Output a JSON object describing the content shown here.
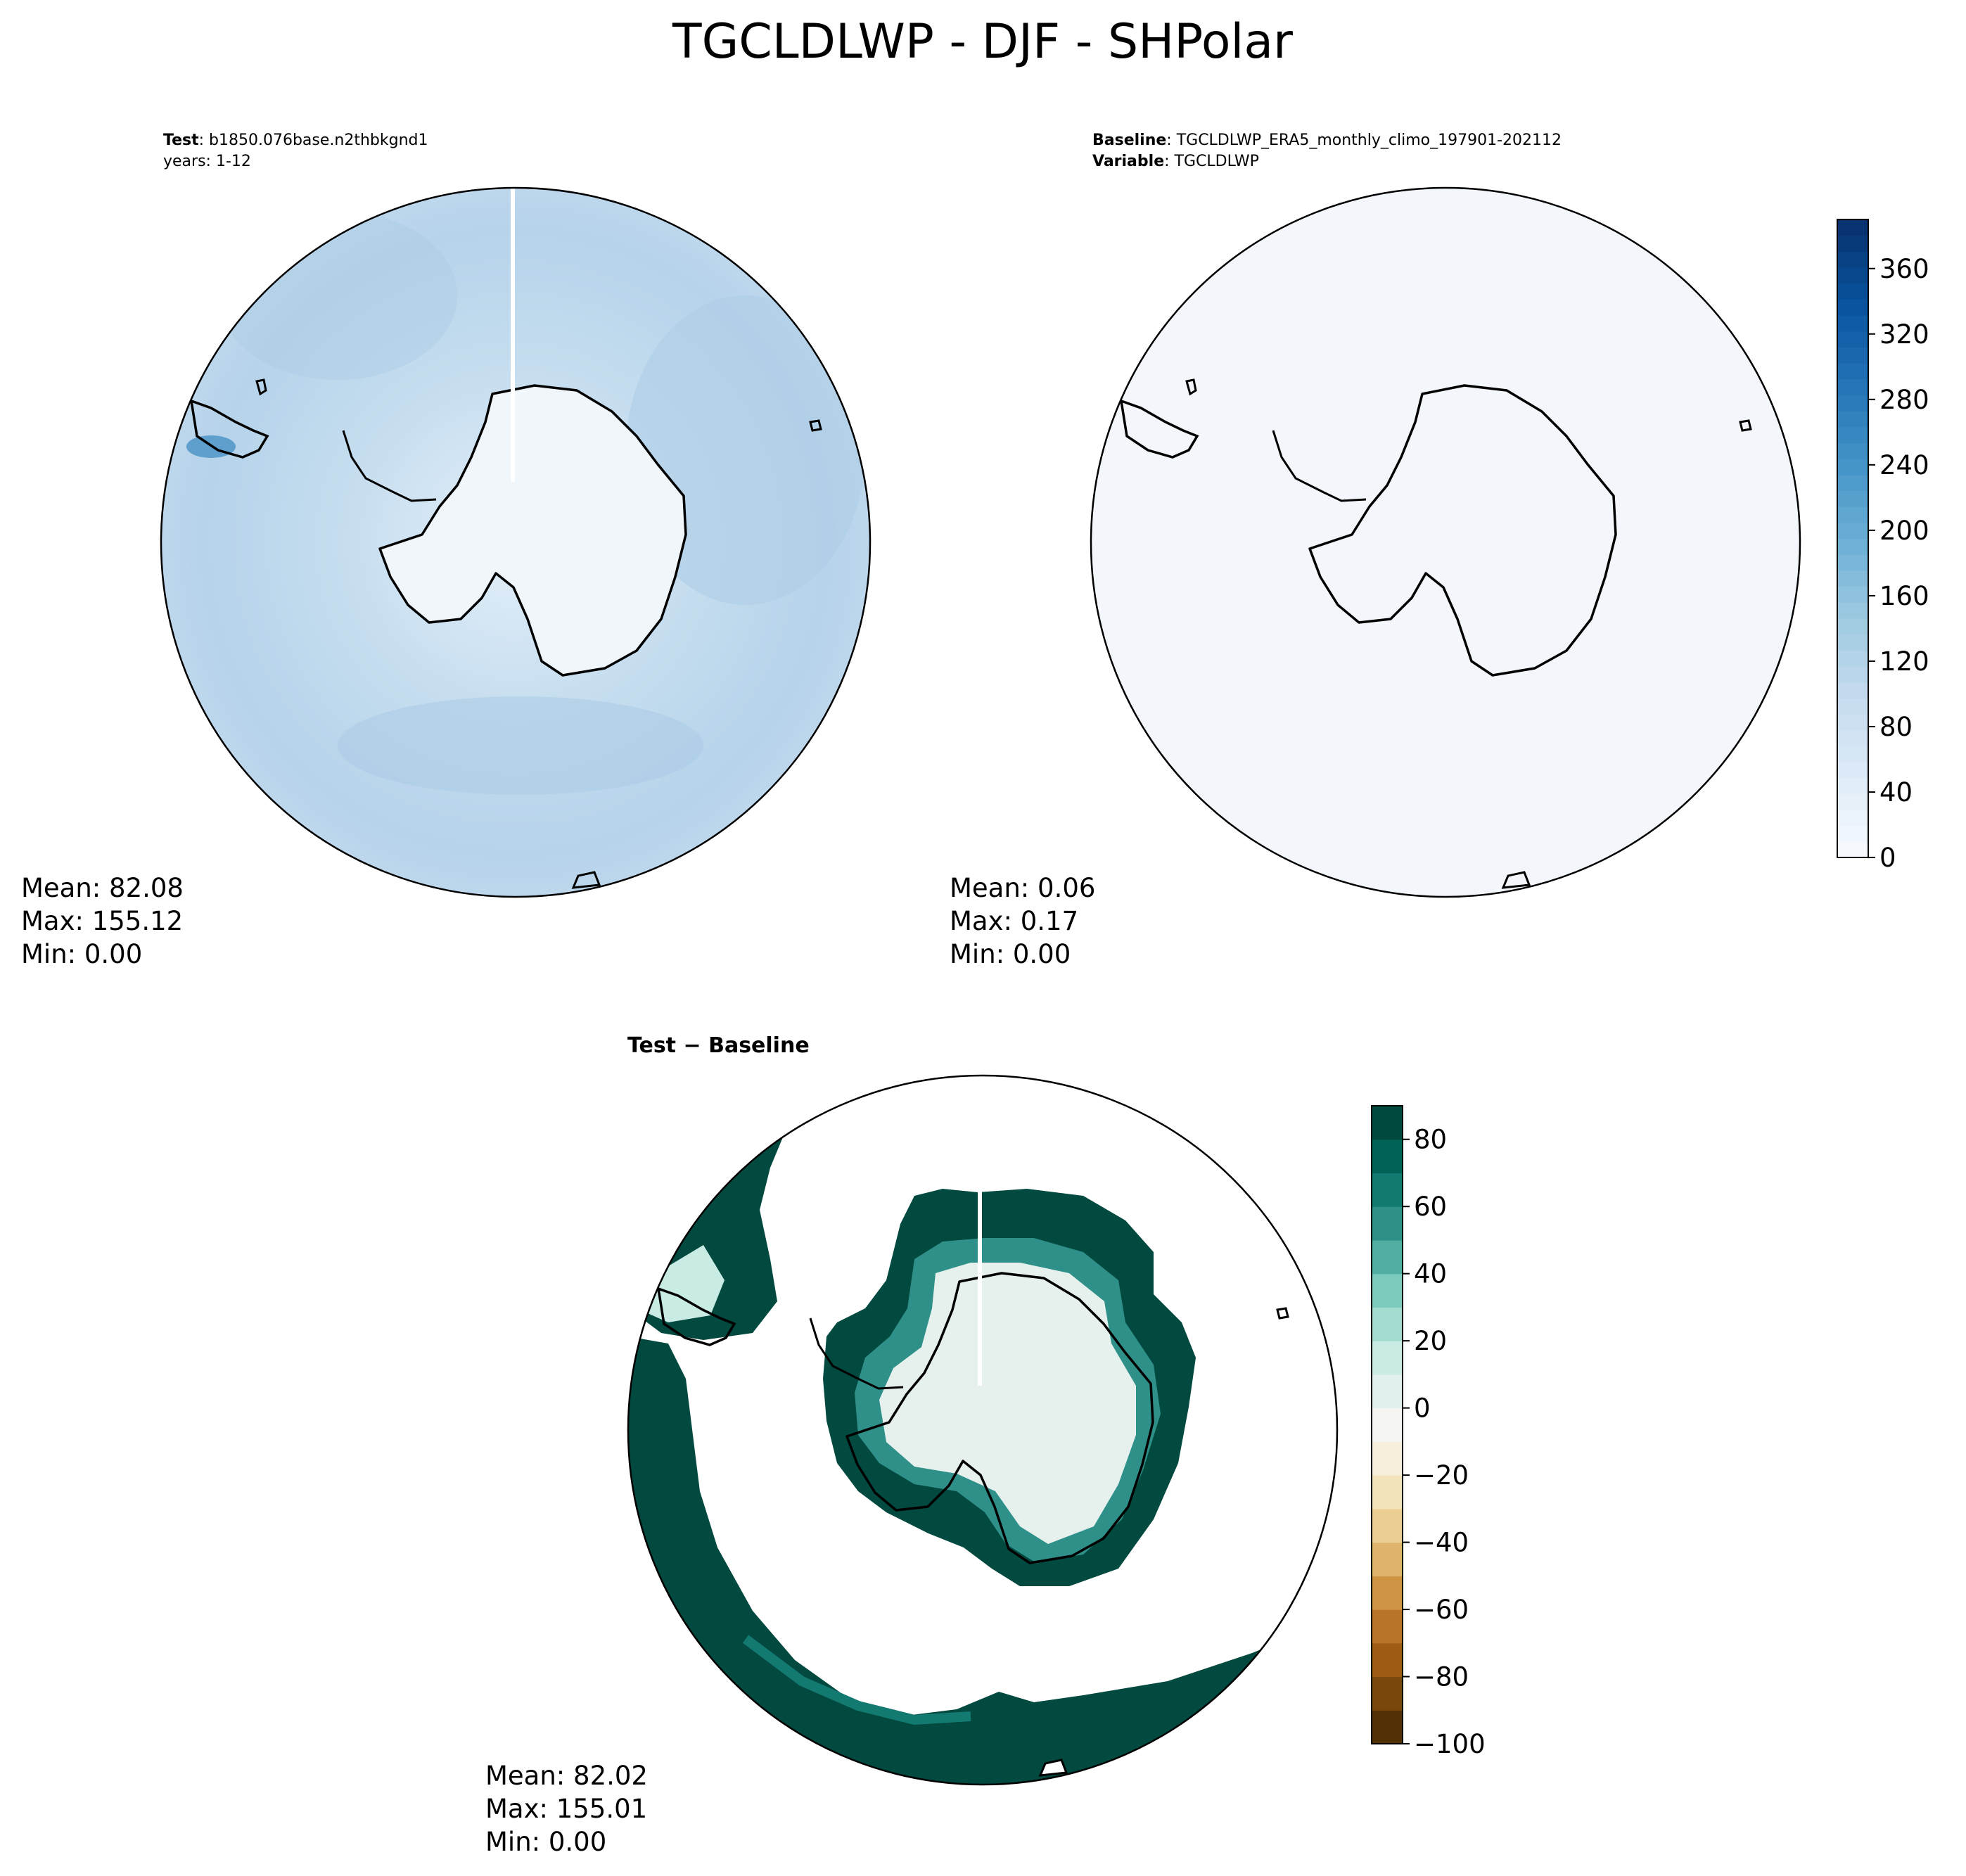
{
  "figure": {
    "title": "TGCLDLWP - DJF - SHPolar"
  },
  "panels": [
    {
      "id": "test",
      "note_line1_label": "Test",
      "note_line1_value": ": b1850.076base.n2thbkgnd1",
      "note_line2": "years: 1-12",
      "stats": {
        "mean": "Mean: 82.08",
        "max": "Max: 155.12",
        "min": "Min:  0.00"
      }
    },
    {
      "id": "baseline",
      "note_line1_label": "Baseline",
      "note_line1_value": ": TGCLDLWP_ERA5_monthly_climo_197901-202112",
      "note_line2_label": "Variable",
      "note_line2_value": ": TGCLDLWP",
      "stats": {
        "mean": "Mean:  0.06",
        "max": "Max:  0.17",
        "min": "Min:  0.00"
      }
    },
    {
      "id": "diff",
      "title_part1": "Test",
      "title_sep": "−",
      "title_part2": "Baseline",
      "stats": {
        "mean": "Mean: 82.02",
        "max": "Max: 155.01",
        "min": "Min:  0.00"
      }
    }
  ],
  "chart_data": [
    {
      "type": "heatmap",
      "panel": "test",
      "projection": "south polar stereographic",
      "region": "SHPolar",
      "field": "TGCLDLWP",
      "season": "DJF",
      "summary": {
        "mean": 82.08,
        "max": 155.12,
        "min": 0.0
      },
      "colormap": "Blues",
      "colorbar_shared_with": "baseline"
    },
    {
      "type": "heatmap",
      "panel": "baseline",
      "projection": "south polar stereographic",
      "field": "TGCLDLWP",
      "summary": {
        "mean": 0.06,
        "max": 0.17,
        "min": 0.0
      },
      "colormap": "Blues",
      "colorbar": {
        "range": [
          0,
          390
        ],
        "ticks": [
          "0",
          "40",
          "80",
          "120",
          "160",
          "200",
          "240",
          "280",
          "320",
          "360"
        ],
        "tick_values": [
          0,
          40,
          80,
          120,
          160,
          200,
          240,
          280,
          320,
          360
        ],
        "levels": 40,
        "color_low": "#f7fbff",
        "color_high": "#08306b"
      }
    },
    {
      "type": "heatmap",
      "panel": "diff",
      "projection": "south polar stereographic",
      "summary": {
        "mean": 82.02,
        "max": 155.01,
        "min": 0.0
      },
      "colormap": "BrBG",
      "colorbar": {
        "range": [
          -100,
          90
        ],
        "ticks": [
          "−100",
          "−80",
          "−60",
          "−40",
          "−20",
          "0",
          "20",
          "40",
          "60",
          "80"
        ],
        "tick_values": [
          -100,
          -80,
          -60,
          -40,
          -20,
          0,
          20,
          40,
          60,
          80
        ],
        "step": 10,
        "colors": [
          "#543005",
          "#7a470b",
          "#9c5c14",
          "#b87428",
          "#cf9545",
          "#dfb56d",
          "#ebcf92",
          "#f3e3bb",
          "#f7efdc",
          "#f5f5f2",
          "#e3f1ee",
          "#c8ebe4",
          "#a3dcd0",
          "#7ccbbc",
          "#52ada3",
          "#2f908a",
          "#137a71",
          "#016257",
          "#00493f"
        ]
      }
    }
  ],
  "colors": {
    "test_ocean": "#bcd6eb",
    "baseline_fill": "#f3f7fc",
    "antarctica_fill": "#f1f6fb",
    "diff_ocean": "#02493f",
    "diff_land": "#e6f0ed"
  }
}
